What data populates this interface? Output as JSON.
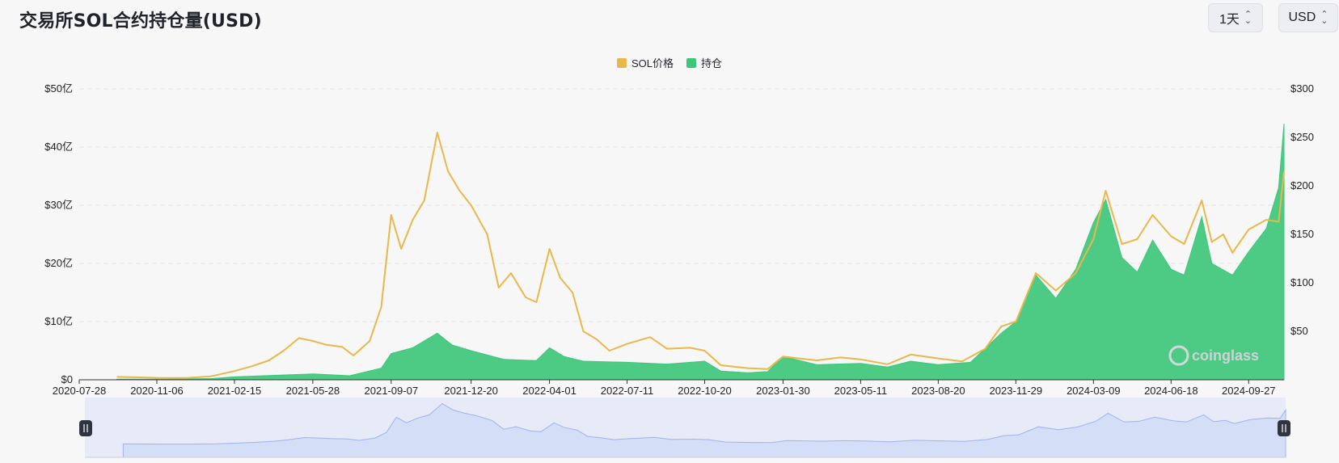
{
  "header": {
    "title": "交易所SOL合约持仓量(USD)",
    "period_label": "1天",
    "currency_label": "USD"
  },
  "colors": {
    "price": "#e8b84a",
    "open_interest": "#3ec77a",
    "navigator_fill": "#d5def7",
    "navigator_line": "#9fb3ee",
    "grid": "#e6e6e6"
  },
  "chart_data": {
    "type": "area",
    "series": [
      {
        "name": "SOL价格",
        "axis": "right",
        "points": [
          [
            "2020-09-15",
            3
          ],
          [
            "2020-10-15",
            2.5
          ],
          [
            "2020-11-06",
            2
          ],
          [
            "2020-12-15",
            1.8
          ],
          [
            "2021-01-15",
            3.5
          ],
          [
            "2021-02-15",
            9
          ],
          [
            "2021-03-10",
            14
          ],
          [
            "2021-04-01",
            20
          ],
          [
            "2021-04-20",
            30
          ],
          [
            "2021-05-10",
            43
          ],
          [
            "2021-05-28",
            40
          ],
          [
            "2021-06-15",
            36
          ],
          [
            "2021-07-05",
            34
          ],
          [
            "2021-07-20",
            25
          ],
          [
            "2021-08-10",
            40
          ],
          [
            "2021-08-25",
            75
          ],
          [
            "2021-09-07",
            170
          ],
          [
            "2021-09-20",
            135
          ],
          [
            "2021-10-05",
            165
          ],
          [
            "2021-10-20",
            185
          ],
          [
            "2021-11-06",
            255
          ],
          [
            "2021-11-20",
            215
          ],
          [
            "2021-12-05",
            195
          ],
          [
            "2021-12-20",
            180
          ],
          [
            "2022-01-10",
            150
          ],
          [
            "2022-01-25",
            95
          ],
          [
            "2022-02-10",
            110
          ],
          [
            "2022-03-01",
            85
          ],
          [
            "2022-03-15",
            80
          ],
          [
            "2022-04-01",
            135
          ],
          [
            "2022-04-15",
            105
          ],
          [
            "2022-05-01",
            90
          ],
          [
            "2022-05-15",
            50
          ],
          [
            "2022-06-01",
            42
          ],
          [
            "2022-06-18",
            30
          ],
          [
            "2022-07-11",
            37
          ],
          [
            "2022-08-10",
            44
          ],
          [
            "2022-09-01",
            32
          ],
          [
            "2022-10-01",
            33
          ],
          [
            "2022-10-20",
            30
          ],
          [
            "2022-11-10",
            15
          ],
          [
            "2022-12-15",
            12
          ],
          [
            "2023-01-10",
            11
          ],
          [
            "2023-01-30",
            24
          ],
          [
            "2023-02-20",
            22
          ],
          [
            "2023-03-15",
            20
          ],
          [
            "2023-04-15",
            23
          ],
          [
            "2023-05-11",
            21
          ],
          [
            "2023-06-15",
            16
          ],
          [
            "2023-07-15",
            26
          ],
          [
            "2023-08-20",
            22
          ],
          [
            "2023-09-20",
            19
          ],
          [
            "2023-10-20",
            32
          ],
          [
            "2023-11-10",
            55
          ],
          [
            "2023-11-29",
            60
          ],
          [
            "2023-12-25",
            110
          ],
          [
            "2024-01-20",
            92
          ],
          [
            "2024-02-15",
            110
          ],
          [
            "2024-03-09",
            145
          ],
          [
            "2024-03-25",
            195
          ],
          [
            "2024-04-15",
            140
          ],
          [
            "2024-05-05",
            145
          ],
          [
            "2024-05-25",
            170
          ],
          [
            "2024-06-18",
            148
          ],
          [
            "2024-07-05",
            140
          ],
          [
            "2024-07-28",
            185
          ],
          [
            "2024-08-10",
            142
          ],
          [
            "2024-08-25",
            150
          ],
          [
            "2024-09-06",
            131
          ],
          [
            "2024-09-27",
            155
          ],
          [
            "2024-10-20",
            165
          ],
          [
            "2024-11-05",
            163
          ],
          [
            "2024-11-12",
            215
          ]
        ]
      },
      {
        "name": "持仓",
        "axis": "left",
        "points": [
          [
            "2020-09-15",
            0.1
          ],
          [
            "2020-11-06",
            0.1
          ],
          [
            "2021-01-15",
            0.2
          ],
          [
            "2021-02-15",
            0.5
          ],
          [
            "2021-04-15",
            0.8
          ],
          [
            "2021-05-28",
            1.0
          ],
          [
            "2021-07-15",
            0.7
          ],
          [
            "2021-08-25",
            2.0
          ],
          [
            "2021-09-07",
            4.5
          ],
          [
            "2021-10-05",
            5.5
          ],
          [
            "2021-11-06",
            8.0
          ],
          [
            "2021-11-25",
            6.0
          ],
          [
            "2021-12-20",
            5.0
          ],
          [
            "2022-02-01",
            3.5
          ],
          [
            "2022-03-15",
            3.3
          ],
          [
            "2022-04-01",
            5.5
          ],
          [
            "2022-04-20",
            4.0
          ],
          [
            "2022-05-15",
            3.2
          ],
          [
            "2022-07-11",
            3.0
          ],
          [
            "2022-09-01",
            2.7
          ],
          [
            "2022-10-20",
            3.2
          ],
          [
            "2022-11-10",
            1.5
          ],
          [
            "2022-12-15",
            1.2
          ],
          [
            "2023-01-10",
            1.4
          ],
          [
            "2023-01-30",
            4.0
          ],
          [
            "2023-03-15",
            2.6
          ],
          [
            "2023-05-11",
            2.8
          ],
          [
            "2023-06-15",
            2.2
          ],
          [
            "2023-07-15",
            3.2
          ],
          [
            "2023-08-20",
            2.6
          ],
          [
            "2023-10-01",
            3.0
          ],
          [
            "2023-11-10",
            8.0
          ],
          [
            "2023-11-29",
            10.0
          ],
          [
            "2023-12-25",
            18.0
          ],
          [
            "2024-01-20",
            14.0
          ],
          [
            "2024-02-15",
            19.0
          ],
          [
            "2024-03-09",
            27.0
          ],
          [
            "2024-03-25",
            31.0
          ],
          [
            "2024-04-15",
            21.0
          ],
          [
            "2024-05-05",
            18.5
          ],
          [
            "2024-05-25",
            24.0
          ],
          [
            "2024-06-18",
            19.0
          ],
          [
            "2024-07-05",
            18.0
          ],
          [
            "2024-07-28",
            28.0
          ],
          [
            "2024-08-10",
            20.0
          ],
          [
            "2024-09-06",
            18.0
          ],
          [
            "2024-09-27",
            22.0
          ],
          [
            "2024-10-20",
            26.0
          ],
          [
            "2024-11-05",
            33.0
          ],
          [
            "2024-11-12",
            44.0
          ]
        ]
      }
    ],
    "x_range": [
      "2020-07-28",
      "2024-11-12"
    ],
    "x_ticks": [
      "2020-07-28",
      "2020-11-06",
      "2021-02-15",
      "2021-05-28",
      "2021-09-07",
      "2021-12-20",
      "2022-04-01",
      "2022-07-11",
      "2022-10-20",
      "2023-01-30",
      "2023-05-11",
      "2023-08-20",
      "2023-11-29",
      "2024-03-09",
      "2024-06-18",
      "2024-09-27"
    ],
    "y_left": {
      "range": [
        0,
        50
      ],
      "ticks": [
        0,
        10,
        20,
        30,
        40,
        50
      ],
      "tick_labels": [
        "$0",
        "$10亿",
        "$20亿",
        "$30亿",
        "$40亿",
        "$50亿"
      ]
    },
    "y_right": {
      "range": [
        0,
        300
      ],
      "ticks": [
        50,
        100,
        150,
        200,
        250,
        300
      ],
      "tick_labels": [
        "$50",
        "$100",
        "$150",
        "$200",
        "$250",
        "$300"
      ]
    },
    "grid": true,
    "legend_position": "top-center",
    "watermark": "coinglass"
  }
}
